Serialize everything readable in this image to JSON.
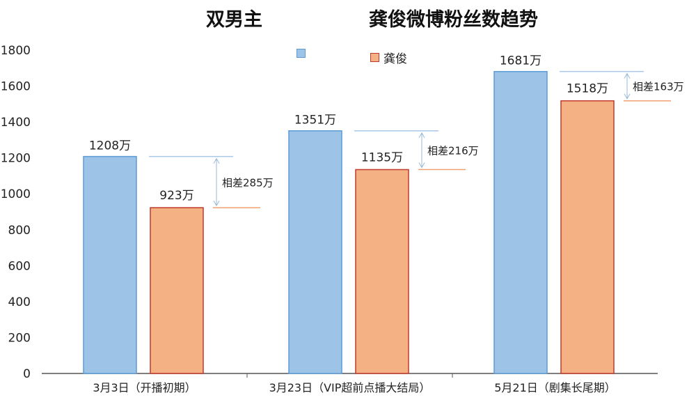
{
  "title_left": "双男主",
  "title_right": "龚俊微博粉丝数趋势",
  "colors": {
    "series_a": "#9dc3e6",
    "series_a_edge": "#5b9bd5",
    "series_b": "#f4b183",
    "series_b_edge": "#c0392b",
    "axis": "#555555"
  },
  "chart_data": {
    "type": "bar",
    "categories": [
      "3月3日（开播初期）",
      "3月23日（VIP超前点播大结局）",
      "5月21日（剧集长尾期）"
    ],
    "series": [
      {
        "name": "",
        "values": [
          1208,
          1351,
          1681
        ],
        "labels": [
          "1208万",
          "1351万",
          "1681万"
        ]
      },
      {
        "name": "龚俊",
        "values": [
          923,
          1135,
          1518
        ],
        "labels": [
          "923万",
          "1135万",
          "1518万"
        ]
      }
    ],
    "differences": [
      "相差285万",
      "相差216万",
      "相差163万"
    ],
    "ylim": [
      0,
      1800
    ],
    "yticks": [
      0,
      200,
      400,
      600,
      800,
      1000,
      1200,
      1400,
      1600,
      1800
    ],
    "legend_position": "top",
    "grid": false
  }
}
